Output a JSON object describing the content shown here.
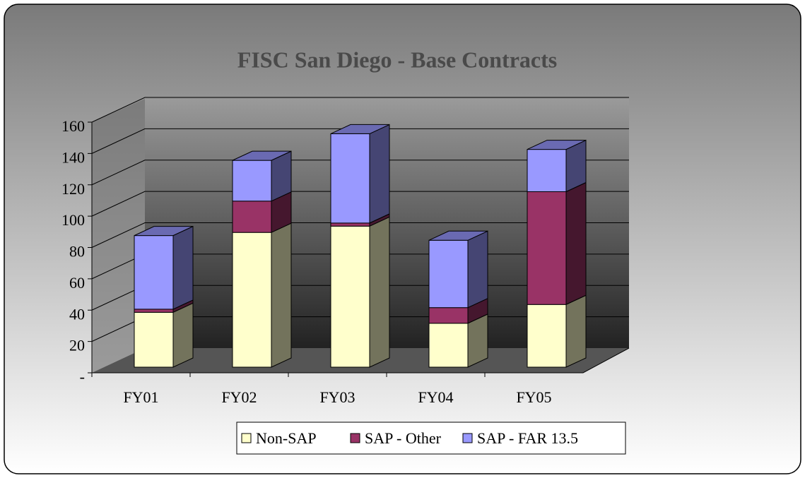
{
  "chart_data": {
    "type": "bar3d_stacked",
    "title": "FISC San Diego - Base Contracts",
    "categories": [
      "FY01",
      "FY02",
      "FY03",
      "FY04",
      "FY05"
    ],
    "series": [
      {
        "name": "Non-SAP",
        "color": "#ffffcc",
        "values": [
          35,
          86,
          90,
          28,
          40
        ]
      },
      {
        "name": "SAP - Other",
        "color": "#993366",
        "values": [
          2,
          20,
          2,
          10,
          72
        ]
      },
      {
        "name": "SAP - FAR 13.5",
        "color": "#9999ff",
        "values": [
          47,
          26,
          57,
          43,
          27
        ]
      }
    ],
    "ylim": [
      0,
      160
    ],
    "yticks": [
      {
        "value": 0,
        "label": "-"
      },
      20,
      40,
      60,
      80,
      100,
      120,
      140,
      160
    ],
    "grid": true,
    "legend": "bottom"
  }
}
